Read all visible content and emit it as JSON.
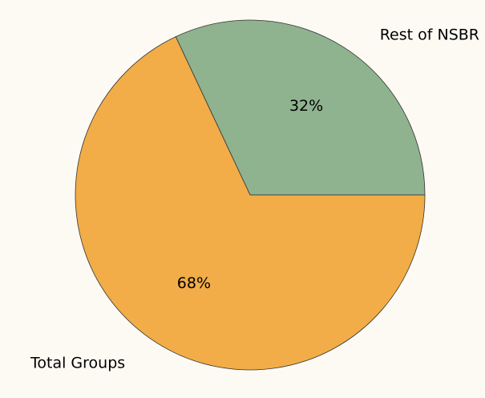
{
  "chart_data": {
    "type": "pie",
    "categories": [
      "Rest of NSBR",
      "Total Groups"
    ],
    "values": [
      32,
      68
    ],
    "value_labels": [
      "32%",
      "68%"
    ],
    "colors": [
      "#8fb28f",
      "#f2ad48"
    ]
  }
}
